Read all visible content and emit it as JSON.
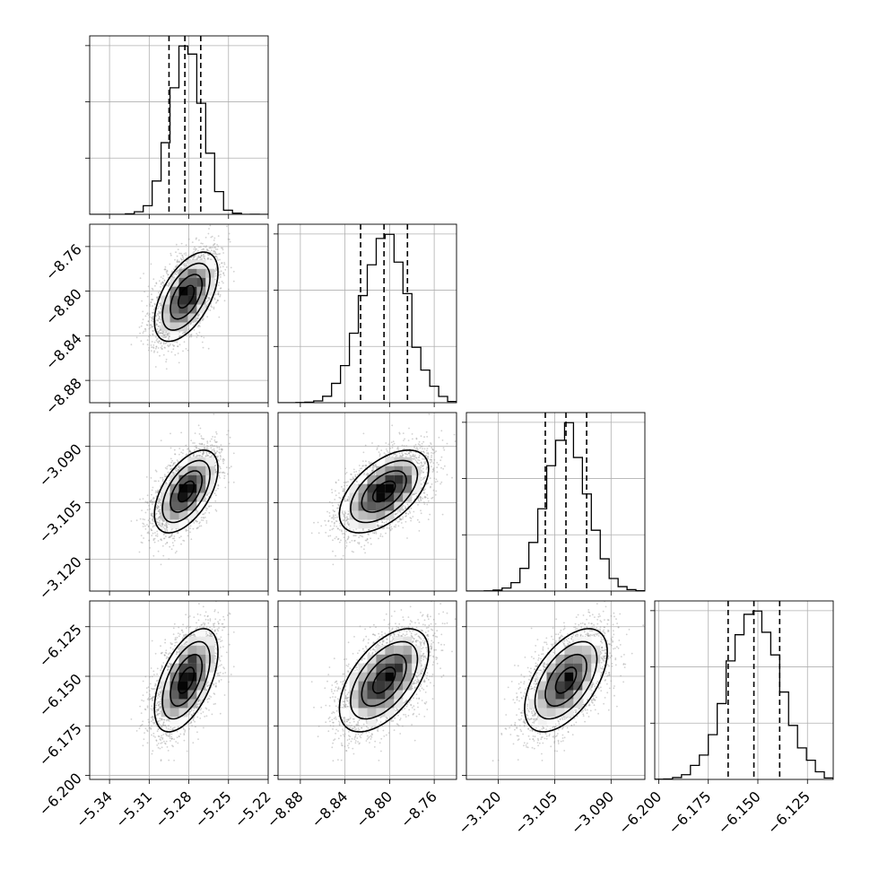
{
  "chart_data": {
    "type": "corner",
    "grid": true,
    "colors": {
      "hist": "#000000",
      "quantile": "#000000",
      "grid": "#b0b0b0",
      "point": "#9a9a9a",
      "axis": "#000000"
    },
    "parameters": [
      {
        "mean": -5.282,
        "sd": 0.012,
        "range": [
          -5.355,
          -5.22
        ],
        "ticks": [
          -5.34,
          -5.31,
          -5.28,
          -5.25,
          -5.22
        ],
        "tick_labels": [
          "−5.34",
          "−5.31",
          "−5.28",
          "−5.25",
          "−5.22"
        ],
        "quantiles": [
          -5.295,
          -5.283,
          -5.271
        ]
      },
      {
        "mean": -8.805,
        "sd": 0.02,
        "range": [
          -8.9,
          -8.74
        ],
        "ticks": [
          -8.88,
          -8.84,
          -8.8,
          -8.76
        ],
        "tick_labels": [
          "−8.88",
          "−8.84",
          "−8.80",
          "−8.76"
        ],
        "quantiles": [
          -8.826,
          -8.805,
          -8.784
        ]
      },
      {
        "mean": -3.102,
        "sd": 0.0055,
        "range": [
          -3.1285,
          -3.081
        ],
        "ticks": [
          -3.12,
          -3.105,
          -3.09
        ],
        "tick_labels": [
          "−3.120",
          "−3.105",
          "−3.090"
        ],
        "quantiles": [
          -3.1075,
          -3.102,
          -3.0965
        ]
      },
      {
        "mean": -6.152,
        "sd": 0.013,
        "range": [
          -6.202,
          -6.112
        ],
        "ticks": [
          -6.2,
          -6.175,
          -6.15,
          -6.125
        ],
        "tick_labels": [
          "−6.200",
          "−6.175",
          "−6.150",
          "−6.125"
        ],
        "quantiles": [
          -6.165,
          -6.152,
          -6.139
        ]
      }
    ],
    "correlation": 0.55,
    "samples": 6000,
    "histogram_bins": 20,
    "density_bins": 20,
    "contour_levels": [
      0.118,
      0.393,
      0.675,
      0.865
    ]
  }
}
